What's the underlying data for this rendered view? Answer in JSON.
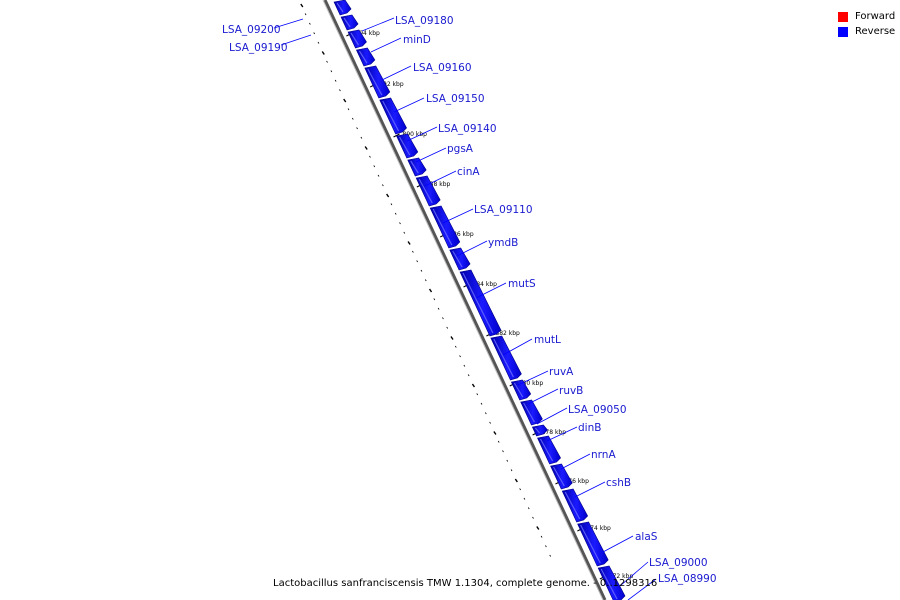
{
  "legend": {
    "forward": {
      "label": "Forward",
      "color": "#ff0000"
    },
    "reverse": {
      "label": "Reverse",
      "color": "#0000ff"
    }
  },
  "caption": "Lactobacillus sanfranciscensis TMW 1.1304, complete genome. - 0..1298316",
  "ruler_labels": [
    "894 kbp",
    "892 kbp",
    "890 kbp",
    "888 kbp",
    "886 kbp",
    "884 kbp",
    "882 kbp",
    "880 kbp",
    "878 kbp",
    "876 kbp",
    "874 kbp",
    "872 kbp"
  ],
  "genes": [
    {
      "name": "LSA_09200",
      "strand": "reverse"
    },
    {
      "name": "LSA_09190",
      "strand": "reverse"
    },
    {
      "name": "LSA_09180",
      "strand": "reverse"
    },
    {
      "name": "minD",
      "strand": "reverse"
    },
    {
      "name": "LSA_09160",
      "strand": "reverse"
    },
    {
      "name": "LSA_09150",
      "strand": "reverse"
    },
    {
      "name": "LSA_09140",
      "strand": "reverse"
    },
    {
      "name": "pgsA",
      "strand": "reverse"
    },
    {
      "name": "cinA",
      "strand": "reverse"
    },
    {
      "name": "LSA_09110",
      "strand": "reverse"
    },
    {
      "name": "ymdB",
      "strand": "reverse"
    },
    {
      "name": "mutS",
      "strand": "reverse"
    },
    {
      "name": "mutL",
      "strand": "reverse"
    },
    {
      "name": "ruvA",
      "strand": "reverse"
    },
    {
      "name": "ruvB",
      "strand": "reverse"
    },
    {
      "name": "LSA_09050",
      "strand": "reverse"
    },
    {
      "name": "dinB",
      "strand": "reverse"
    },
    {
      "name": "nrnA",
      "strand": "reverse"
    },
    {
      "name": "cshB",
      "strand": "reverse"
    },
    {
      "name": "alaS",
      "strand": "reverse"
    },
    {
      "name": "LSA_09000",
      "strand": "reverse"
    },
    {
      "name": "LSA_08990",
      "strand": "reverse"
    }
  ]
}
